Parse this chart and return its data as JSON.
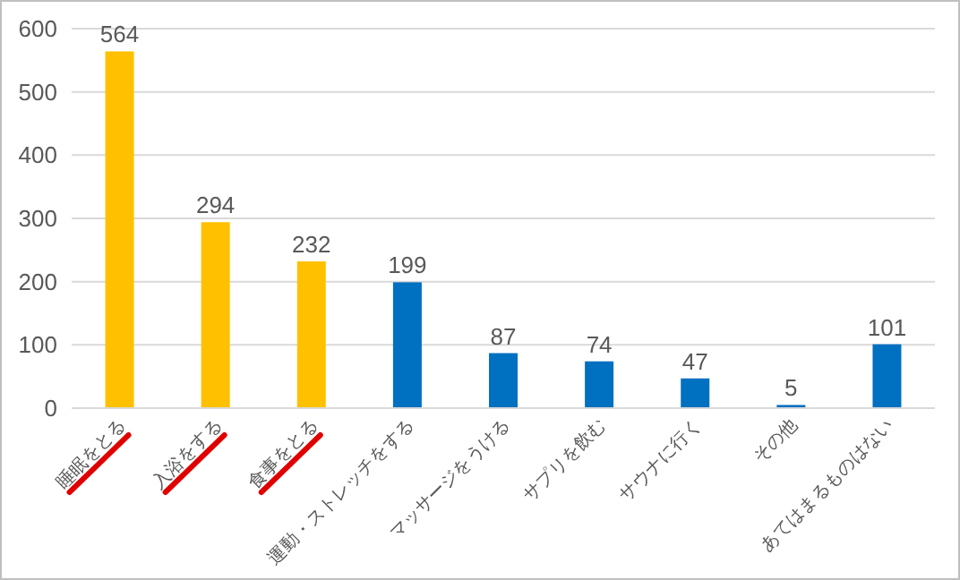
{
  "chart_data": {
    "type": "bar",
    "categories": [
      "睡眠をとる",
      "入浴をする",
      "食事をとる",
      "運動・ストレッチをする",
      "マッサージをうける",
      "サプリを飲む",
      "サウナに行く",
      "その他",
      "あてはまるものはない"
    ],
    "values": [
      564,
      294,
      232,
      199,
      87,
      74,
      47,
      5,
      101
    ],
    "colors": [
      "#ffc000",
      "#ffc000",
      "#ffc000",
      "#0070c0",
      "#0070c0",
      "#0070c0",
      "#0070c0",
      "#0070c0",
      "#0070c0"
    ],
    "ylim": [
      0,
      600
    ],
    "yticks": [
      0,
      100,
      200,
      300,
      400,
      500,
      600
    ],
    "grid": "y",
    "data_labels": true
  }
}
